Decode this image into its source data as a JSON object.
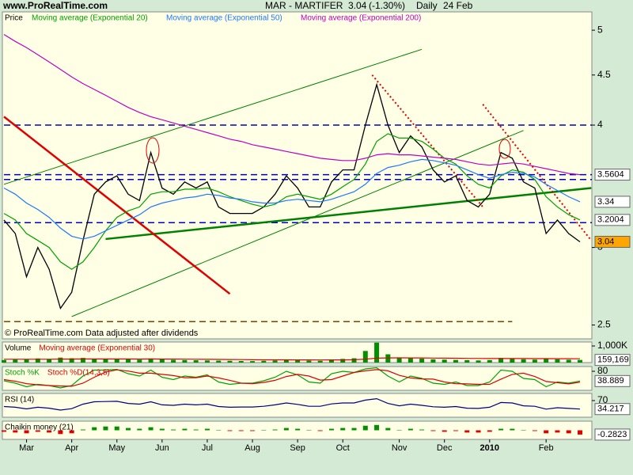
{
  "header": {
    "site": "www.ProRealTime.com",
    "symbol": "MAR - MARTIFER",
    "change": "(-1.30%)",
    "period": "Daily",
    "date": "24 Feb"
  },
  "footer": "© ProRealTime.com Data adjusted after dividends",
  "chart_data": [
    {
      "type": "line",
      "log": true,
      "ylim": [
        2.42,
        5.22
      ],
      "yticks": [
        2.5,
        3,
        4,
        4.5,
        5
      ],
      "categories": [
        null,
        null,
        "Mar",
        null,
        null,
        null,
        "Apr",
        null,
        null,
        null,
        "May",
        null,
        null,
        null,
        "Jun",
        null,
        null,
        null,
        "Jul",
        null,
        null,
        null,
        "Aug",
        null,
        null,
        null,
        "Sep",
        null,
        null,
        null,
        "Oct",
        null,
        null,
        null,
        null,
        "Nov",
        null,
        null,
        null,
        "Dec",
        null,
        null,
        null,
        "2010",
        null,
        null,
        null,
        null,
        "Feb",
        null,
        null,
        null
      ],
      "series": [
        {
          "name": "Price",
          "color": "#000000",
          "values": [
            3.2,
            3.1,
            2.8,
            3.0,
            2.85,
            2.6,
            2.7,
            3.05,
            3.4,
            3.5,
            3.55,
            3.4,
            3.35,
            3.75,
            3.45,
            3.4,
            3.5,
            3.45,
            3.5,
            3.3,
            3.25,
            3.25,
            3.25,
            3.3,
            3.4,
            3.55,
            3.45,
            3.3,
            3.3,
            3.5,
            3.6,
            3.6,
            4.0,
            4.4,
            4.0,
            3.75,
            3.9,
            3.8,
            3.6,
            3.5,
            3.55,
            3.35,
            3.3,
            3.4,
            3.75,
            3.7,
            3.5,
            3.45,
            3.1,
            3.2,
            3.1,
            3.04
          ]
        },
        {
          "name": "Moving average (Exponential 20)",
          "color": "#00a000",
          "values": [
            3.25,
            3.2,
            3.1,
            3.05,
            3.0,
            2.9,
            2.85,
            2.9,
            3.0,
            3.12,
            3.22,
            3.27,
            3.3,
            3.4,
            3.42,
            3.42,
            3.44,
            3.44,
            3.45,
            3.42,
            3.38,
            3.35,
            3.32,
            3.3,
            3.32,
            3.38,
            3.4,
            3.38,
            3.36,
            3.4,
            3.46,
            3.52,
            3.65,
            3.85,
            3.92,
            3.88,
            3.88,
            3.85,
            3.78,
            3.7,
            3.65,
            3.55,
            3.48,
            3.45,
            3.55,
            3.6,
            3.58,
            3.52,
            3.38,
            3.3,
            3.24,
            3.2004
          ]
        },
        {
          "name": "Moving average (Exponential 50)",
          "color": "#1e78ff",
          "values": [
            3.45,
            3.4,
            3.33,
            3.28,
            3.22,
            3.14,
            3.08,
            3.06,
            3.08,
            3.12,
            3.16,
            3.2,
            3.24,
            3.3,
            3.33,
            3.35,
            3.37,
            3.38,
            3.4,
            3.39,
            3.37,
            3.36,
            3.34,
            3.33,
            3.33,
            3.35,
            3.36,
            3.35,
            3.34,
            3.36,
            3.39,
            3.42,
            3.48,
            3.57,
            3.62,
            3.64,
            3.67,
            3.69,
            3.68,
            3.66,
            3.64,
            3.6,
            3.56,
            3.53,
            3.56,
            3.58,
            3.57,
            3.54,
            3.48,
            3.43,
            3.38,
            3.34
          ]
        },
        {
          "name": "Moving average (Exponential 200)",
          "color": "#c000c0",
          "values": [
            4.95,
            4.87,
            4.8,
            4.72,
            4.64,
            4.56,
            4.48,
            4.41,
            4.35,
            4.29,
            4.23,
            4.17,
            4.12,
            4.08,
            4.05,
            4.02,
            3.99,
            3.96,
            3.93,
            3.9,
            3.87,
            3.85,
            3.82,
            3.8,
            3.78,
            3.76,
            3.74,
            3.72,
            3.7,
            3.69,
            3.68,
            3.68,
            3.7,
            3.73,
            3.74,
            3.73,
            3.73,
            3.72,
            3.71,
            3.7,
            3.69,
            3.67,
            3.65,
            3.64,
            3.65,
            3.66,
            3.65,
            3.63,
            3.61,
            3.59,
            3.57,
            3.5604
          ]
        }
      ],
      "hlines": [
        {
          "value": 4.0,
          "color": "#0000c0"
        },
        {
          "value": 3.56,
          "color": "#0000c0"
        },
        {
          "value": 3.52,
          "color": "#0000c0"
        },
        {
          "value": 3.18,
          "color": "#0000c0"
        },
        {
          "value": 2.52,
          "color": "#804000",
          "end": 45
        }
      ],
      "trendlines": [
        {
          "start": [
            0,
            3.48
          ],
          "end": [
            37,
            4.78
          ],
          "color": "#008000",
          "width": 1
        },
        {
          "start": [
            6,
            2.55
          ],
          "end": [
            46,
            3.95
          ],
          "color": "#008000",
          "width": 1
        },
        {
          "start": [
            9,
            3.06
          ],
          "end": [
            52,
            3.45
          ],
          "color": "#008000",
          "width": 2.5
        },
        {
          "start": [
            0,
            4.08
          ],
          "end": [
            20,
            2.69
          ],
          "color": "#e00000",
          "width": 2.5
        },
        {
          "start": [
            32.6,
            4.5
          ],
          "end": [
            42.4,
            3.3
          ],
          "color": "#e00000",
          "width": 2,
          "dotted": true
        },
        {
          "start": [
            42.4,
            4.2
          ],
          "end": [
            51.9,
            3.06
          ],
          "color": "#e00000",
          "width": 2,
          "dotted": true
        }
      ]
    },
    {
      "type": "bar",
      "ylim": [
        0,
        1240000
      ],
      "yticks": [
        {
          "value": 1000000,
          "label": "1,000K"
        }
      ],
      "last_label": "159,169",
      "series": [
        {
          "name": "Volume",
          "color": "#009000",
          "values": [
            150000,
            180000,
            200000,
            250000,
            220000,
            300000,
            260000,
            280000,
            240000,
            200000,
            210000,
            190000,
            170000,
            250000,
            200000,
            160000,
            150000,
            140000,
            130000,
            120000,
            110000,
            100000,
            90000,
            110000,
            130000,
            160000,
            140000,
            120000,
            110000,
            180000,
            220000,
            260000,
            700000,
            1200000,
            500000,
            300000,
            260000,
            240000,
            200000,
            180000,
            160000,
            150000,
            130000,
            150000,
            280000,
            250000,
            200000,
            180000,
            260000,
            200000,
            170000,
            159169
          ]
        },
        {
          "name": "Moving average (Exponential 30)",
          "color": "#e00000",
          "type": "line",
          "values": [
            200000,
            198000,
            198000,
            201000,
            202000,
            208000,
            211000,
            215000,
            216000,
            215000,
            215000,
            213000,
            210000,
            213000,
            212000,
            208000,
            204000,
            200000,
            195000,
            190000,
            185000,
            179000,
            173000,
            169000,
            166000,
            166000,
            164000,
            161000,
            158000,
            160000,
            164000,
            170000,
            204000,
            268000,
            283000,
            284000,
            282000,
            279000,
            274000,
            268000,
            262000,
            255000,
            247000,
            241000,
            244000,
            245000,
            242000,
            238000,
            239000,
            236000,
            232000,
            227000
          ]
        }
      ]
    },
    {
      "type": "line",
      "ylim": [
        0,
        100
      ],
      "yticks": [
        80
      ],
      "series": [
        {
          "name": "Stoch %K",
          "color": "#00a000",
          "values": [
            40,
            30,
            15,
            25,
            20,
            10,
            20,
            60,
            85,
            85,
            88,
            70,
            60,
            85,
            55,
            45,
            60,
            55,
            65,
            35,
            25,
            30,
            30,
            40,
            55,
            80,
            65,
            35,
            30,
            70,
            80,
            75,
            90,
            95,
            60,
            35,
            60,
            50,
            30,
            25,
            35,
            20,
            20,
            35,
            85,
            80,
            50,
            45,
            15,
            35,
            30,
            38.889
          ]
        },
        {
          "name": "Stoch %D(14,3,5)",
          "color": "#e00000",
          "values": [
            45,
            38,
            28,
            23,
            20,
            18,
            17,
            30,
            55,
            77,
            86,
            81,
            72,
            72,
            67,
            62,
            53,
            53,
            60,
            52,
            42,
            30,
            28,
            33,
            42,
            58,
            67,
            60,
            43,
            45,
            60,
            75,
            82,
            87,
            82,
            63,
            52,
            48,
            47,
            35,
            28,
            27,
            25,
            25,
            47,
            67,
            72,
            58,
            37,
            32,
            27,
            34
          ]
        }
      ]
    },
    {
      "type": "line",
      "ylim": [
        0,
        100
      ],
      "yticks": [
        70
      ],
      "series": [
        {
          "name": "RSI (14)",
          "color": "#000080",
          "values": [
            45,
            42,
            35,
            42,
            38,
            30,
            36,
            55,
            65,
            66,
            67,
            58,
            55,
            65,
            52,
            50,
            55,
            52,
            55,
            45,
            42,
            43,
            43,
            46,
            52,
            60,
            54,
            46,
            46,
            56,
            60,
            60,
            72,
            78,
            58,
            48,
            55,
            50,
            44,
            42,
            45,
            38,
            37,
            42,
            62,
            60,
            48,
            46,
            34,
            40,
            37,
            34.217
          ]
        }
      ]
    },
    {
      "type": "bar",
      "ylim": [
        -0.6,
        0.6
      ],
      "yticks": [],
      "series": [
        {
          "name": "Chaikin money (21)",
          "color": "#009000",
          "negative_color": "#e00000",
          "values": [
            -0.1,
            -0.15,
            -0.2,
            -0.1,
            -0.15,
            -0.25,
            -0.2,
            0.05,
            0.2,
            0.25,
            0.25,
            0.15,
            0.1,
            0.2,
            0.1,
            0.05,
            0.1,
            0.05,
            0.1,
            0.0,
            -0.05,
            -0.05,
            -0.05,
            0.0,
            0.05,
            0.15,
            0.1,
            0.0,
            -0.05,
            0.1,
            0.15,
            0.15,
            0.3,
            0.35,
            0.15,
            0.0,
            0.1,
            0.05,
            -0.05,
            -0.1,
            -0.05,
            -0.15,
            -0.15,
            -0.1,
            0.1,
            0.1,
            0.0,
            -0.05,
            -0.2,
            -0.15,
            -0.2,
            -0.2823
          ]
        }
      ]
    }
  ]
}
